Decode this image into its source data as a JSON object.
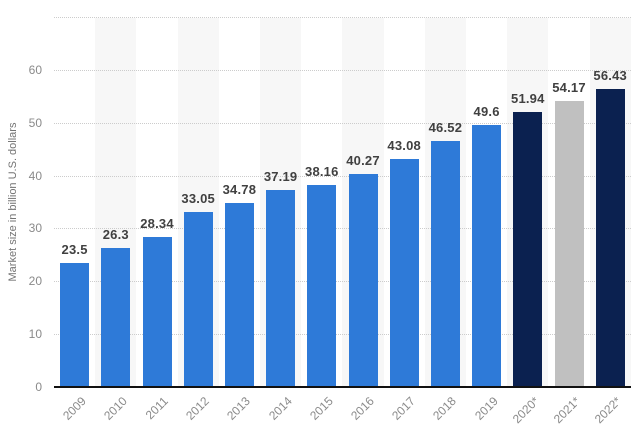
{
  "chart_data": {
    "type": "bar",
    "title": "",
    "xlabel": "",
    "ylabel": "Market size in billion U.S. dollars",
    "ylim": [
      0,
      70
    ],
    "yticks": [
      0,
      10,
      20,
      30,
      40,
      50,
      60
    ],
    "grid": "horizontal-dotted",
    "legend_position": "none",
    "categories": [
      "2009",
      "2010",
      "2011",
      "2012",
      "2013",
      "2014",
      "2015",
      "2016",
      "2017",
      "2018",
      "2019",
      "2020*",
      "2021*",
      "2022*"
    ],
    "values": [
      23.5,
      26.3,
      28.34,
      33.05,
      34.78,
      37.19,
      38.16,
      40.27,
      43.08,
      46.52,
      49.6,
      51.94,
      54.17,
      56.43
    ],
    "value_labels": [
      "23.5",
      "26.3",
      "28.34",
      "33.05",
      "34.78",
      "37.19",
      "38.16",
      "40.27",
      "43.08",
      "46.52",
      "49.6",
      "51.94",
      "54.17",
      "56.43"
    ],
    "bar_color_keys": [
      "actual",
      "actual",
      "actual",
      "actual",
      "actual",
      "actual",
      "actual",
      "actual",
      "actual",
      "actual",
      "actual",
      "forecast_dark",
      "forecast_gray",
      "forecast_dark"
    ],
    "colors": {
      "actual": "#2e7ad8",
      "forecast_dark": "#0b2150",
      "forecast_gray": "#c0c0c0",
      "stripe": "#f7f7f7",
      "gridline": "#cccccc",
      "axis_line": "#111111",
      "value_label": "#404040",
      "tick_label": "#8a8a8a",
      "axis_title": "#737373"
    }
  }
}
